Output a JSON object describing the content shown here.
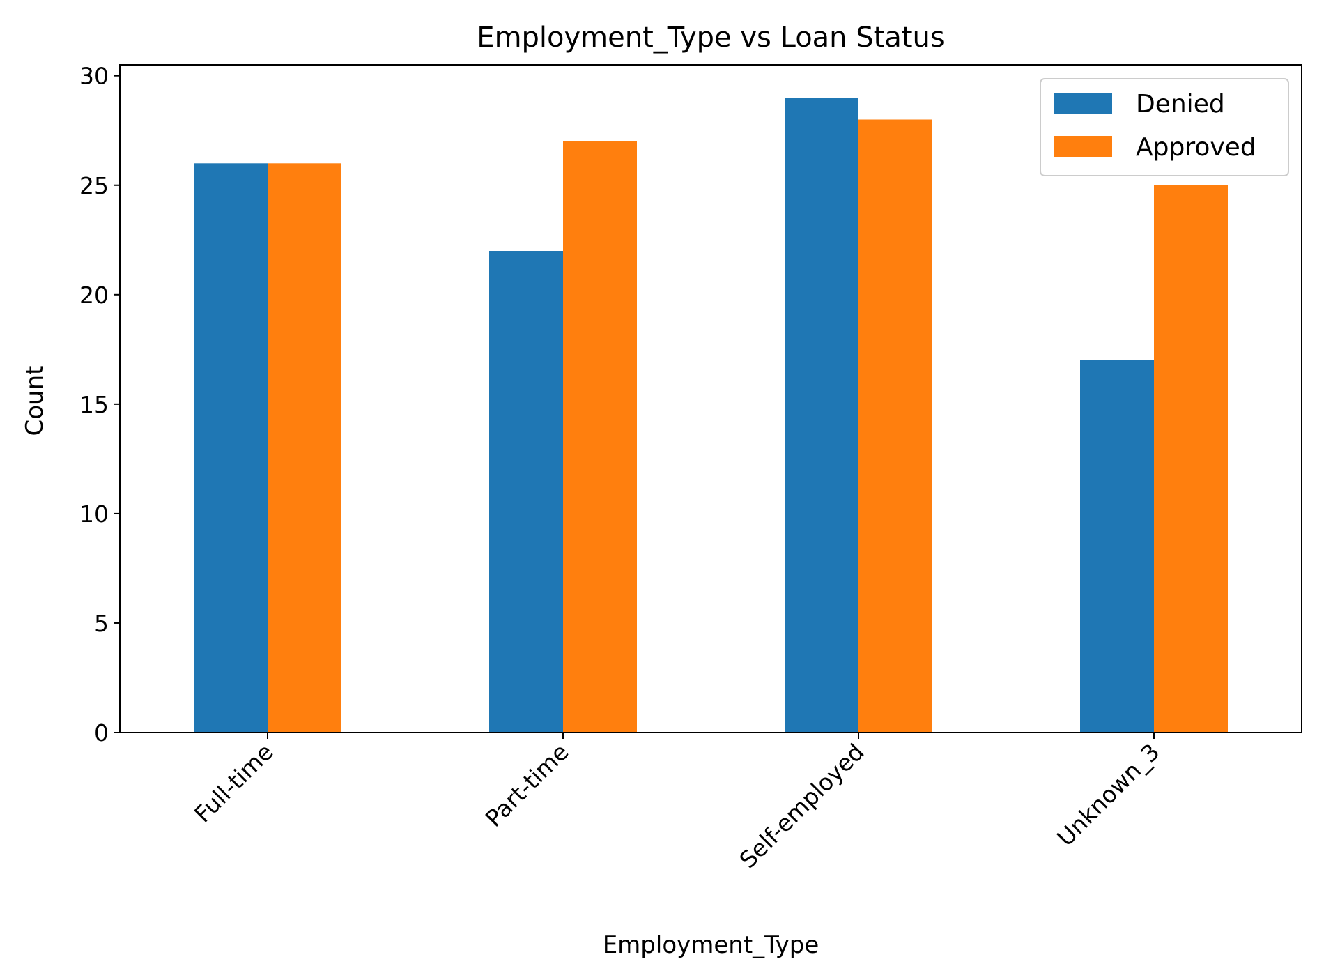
{
  "chart_data": {
    "type": "bar",
    "title": "Employment_Type vs Loan Status",
    "xlabel": "Employment_Type",
    "ylabel": "Count",
    "categories": [
      "Full-time",
      "Part-time",
      "Self-employed",
      "Unknown_3"
    ],
    "series": [
      {
        "name": "Denied",
        "color": "#1f77b4",
        "values": [
          26,
          22,
          29,
          17
        ]
      },
      {
        "name": "Approved",
        "color": "#ff7f0e",
        "values": [
          26,
          27,
          28,
          25
        ]
      }
    ],
    "ylim": [
      0,
      30.5
    ],
    "yticks": [
      0,
      5,
      10,
      15,
      20,
      25,
      30
    ],
    "grid": false,
    "legend_position": "top-right"
  }
}
